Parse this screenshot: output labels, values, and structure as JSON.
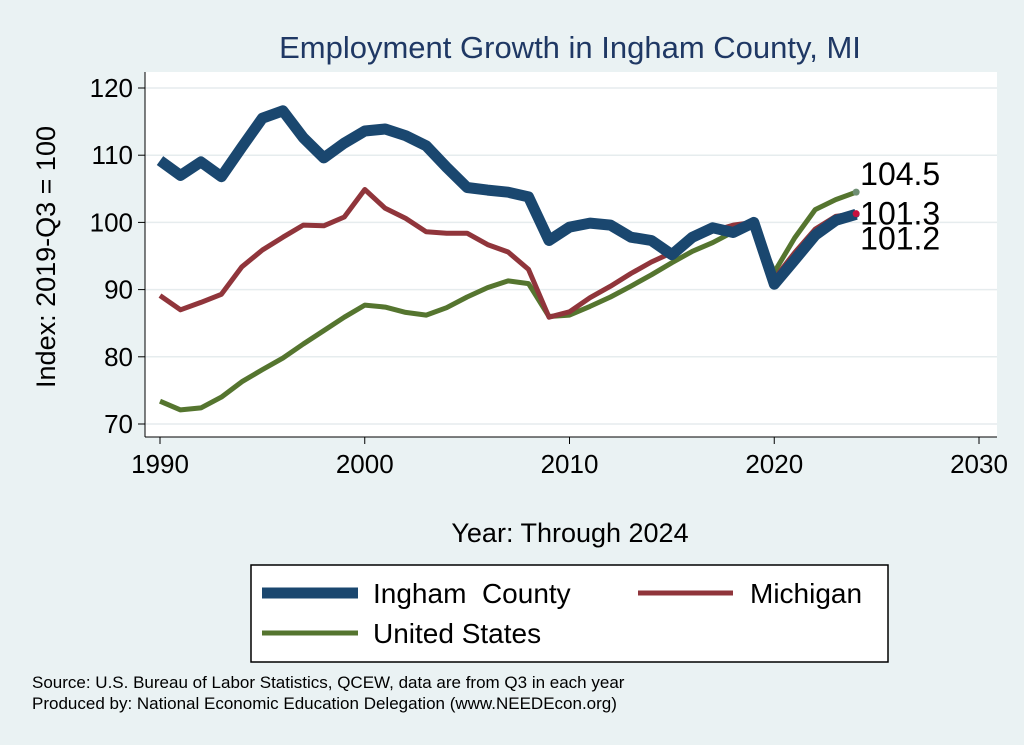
{
  "chart_data": {
    "type": "line",
    "title": "Employment Growth in Ingham County, MI",
    "xlabel": "Year: Through 2024",
    "ylabel": "Index: 2019-Q3 = 100",
    "xlim": [
      1990,
      2030
    ],
    "ylim": [
      70,
      120
    ],
    "x_ticks": [
      1990,
      2000,
      2010,
      2020,
      2030
    ],
    "y_ticks": [
      70,
      80,
      90,
      100,
      110,
      120
    ],
    "grid": true,
    "legend_position": "bottom",
    "x": [
      1990,
      1991,
      1992,
      1993,
      1994,
      1995,
      1996,
      1997,
      1998,
      1999,
      2000,
      2001,
      2002,
      2003,
      2004,
      2005,
      2006,
      2007,
      2008,
      2009,
      2010,
      2011,
      2012,
      2013,
      2014,
      2015,
      2016,
      2017,
      2018,
      2019,
      2020,
      2021,
      2022,
      2023,
      2024
    ],
    "series": [
      {
        "name": "Ingham  County",
        "color": "#1a476f",
        "end_label": "101.2",
        "values": [
          109.2,
          107.0,
          109.0,
          106.8,
          111.2,
          115.5,
          116.6,
          112.6,
          109.6,
          111.8,
          113.6,
          113.9,
          112.9,
          111.4,
          108.2,
          105.2,
          104.8,
          104.5,
          103.8,
          97.3,
          99.3,
          99.9,
          99.6,
          97.8,
          97.3,
          95.2,
          97.8,
          99.2,
          98.5,
          100.0,
          90.8,
          94.4,
          98.1,
          100.3,
          101.2
        ]
      },
      {
        "name": "Michigan",
        "color": "#90353b",
        "end_label": "101.3",
        "values": [
          89.1,
          87.0,
          88.1,
          89.3,
          93.4,
          95.9,
          97.8,
          99.6,
          99.5,
          100.8,
          104.9,
          102.1,
          100.6,
          98.6,
          98.4,
          98.4,
          96.7,
          95.6,
          93.0,
          85.9,
          86.7,
          88.8,
          90.5,
          92.4,
          94.1,
          95.5,
          97.4,
          98.7,
          99.6,
          100.0,
          91.6,
          95.5,
          99.0,
          100.9,
          101.3
        ]
      },
      {
        "name": "United States",
        "color": "#55752f",
        "end_label": "104.5",
        "values": [
          73.4,
          72.1,
          72.4,
          74.0,
          76.3,
          78.1,
          79.8,
          81.9,
          83.9,
          85.9,
          87.7,
          87.4,
          86.6,
          86.2,
          87.3,
          88.9,
          90.3,
          91.3,
          90.9,
          86.0,
          86.2,
          87.5,
          88.9,
          90.5,
          92.2,
          94.0,
          95.7,
          97.0,
          98.6,
          100.0,
          92.6,
          97.7,
          101.9,
          103.4,
          104.5
        ]
      }
    ]
  },
  "legend": {
    "items": [
      "Ingham  County",
      "Michigan",
      "United States"
    ]
  },
  "footer": {
    "source": "Source: U.S. Bureau of Labor Statistics, QCEW, data are from Q3 in each year",
    "produced": "Produced by: National Economic Education Delegation (www.NEEDEcon.org)"
  }
}
